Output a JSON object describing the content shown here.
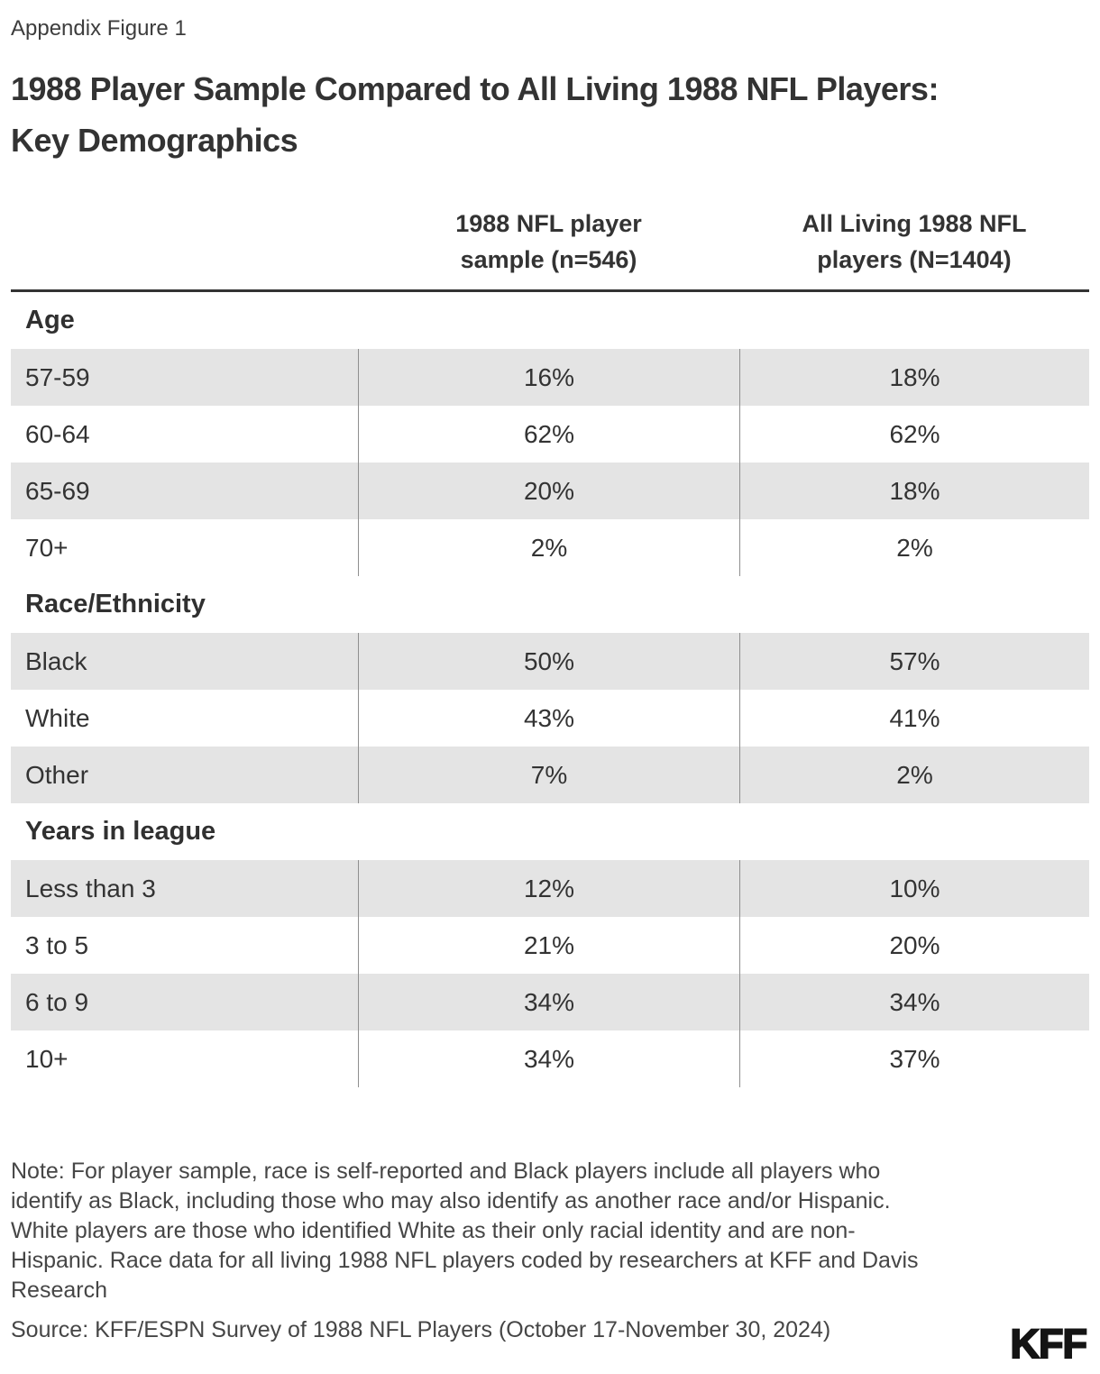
{
  "page": {
    "figure_label": "Appendix Figure 1",
    "title_lines": [
      "1988 Player Sample Compared to All Living 1988 NFL Players:",
      "Key Demographics"
    ]
  },
  "table": {
    "columns": [
      {
        "label_lines": [
          "1988 NFL player",
          "sample (n=546)"
        ]
      },
      {
        "label_lines": [
          "All Living 1988 NFL",
          "players (N=1404)"
        ]
      }
    ],
    "sections": [
      {
        "title": "Age",
        "rows": [
          {
            "label": "57-59",
            "col1": "16%",
            "col2": "18%"
          },
          {
            "label": "60-64",
            "col1": "62%",
            "col2": "62%"
          },
          {
            "label": "65-69",
            "col1": "20%",
            "col2": "18%"
          },
          {
            "label": "70+",
            "col1": "2%",
            "col2": "2%"
          }
        ]
      },
      {
        "title": "Race/Ethnicity",
        "rows": [
          {
            "label": "Black",
            "col1": "50%",
            "col2": "57%"
          },
          {
            "label": "White",
            "col1": "43%",
            "col2": "41%"
          },
          {
            "label": "Other",
            "col1": "7%",
            "col2": "2%"
          }
        ]
      },
      {
        "title": "Years in league",
        "rows": [
          {
            "label": "Less than 3",
            "col1": "12%",
            "col2": "10%"
          },
          {
            "label": "3 to 5",
            "col1": "21%",
            "col2": "20%"
          },
          {
            "label": "6 to 9",
            "col1": "34%",
            "col2": "34%"
          },
          {
            "label": "10+",
            "col1": "34%",
            "col2": "37%"
          }
        ]
      }
    ]
  },
  "footer": {
    "note_lines": [
      "Note: For player sample, race is self-reported and Black players include all players who",
      "identify as Black, including those who may also identify as another race and/or Hispanic.",
      "White players are those who identified White as their only racial identity and are non-",
      "Hispanic. Race data for all living 1988 NFL players coded by researchers at KFF and Davis",
      "Research"
    ],
    "source": "Source: KFF/ESPN Survey of 1988 NFL Players (October 17-November 30, 2024)",
    "logo": "KFF"
  },
  "colors": {
    "text": "#333333",
    "note_text": "#464646",
    "row_shade": "#e4e4e4",
    "divider": "#8f8f8f",
    "header_rule": "#333333",
    "logo": "#141414"
  },
  "chart_data": {
    "type": "table",
    "title": "1988 Player Sample Compared to All Living 1988 NFL Players: Key Demographics",
    "columns": [
      "1988 NFL player sample (n=546)",
      "All Living 1988 NFL players (N=1404)"
    ],
    "sections": [
      {
        "name": "Age",
        "rows": [
          [
            "57-59",
            16,
            18
          ],
          [
            "60-64",
            62,
            62
          ],
          [
            "65-69",
            20,
            18
          ],
          [
            "70+",
            2,
            2
          ]
        ]
      },
      {
        "name": "Race/Ethnicity",
        "rows": [
          [
            "Black",
            50,
            57
          ],
          [
            "White",
            43,
            41
          ],
          [
            "Other",
            7,
            2
          ]
        ]
      },
      {
        "name": "Years in league",
        "rows": [
          [
            "Less than 3",
            12,
            10
          ],
          [
            "3 to 5",
            21,
            20
          ],
          [
            "6 to 9",
            34,
            34
          ],
          [
            "10+",
            34,
            37
          ]
        ]
      }
    ],
    "values_unit": "%"
  }
}
